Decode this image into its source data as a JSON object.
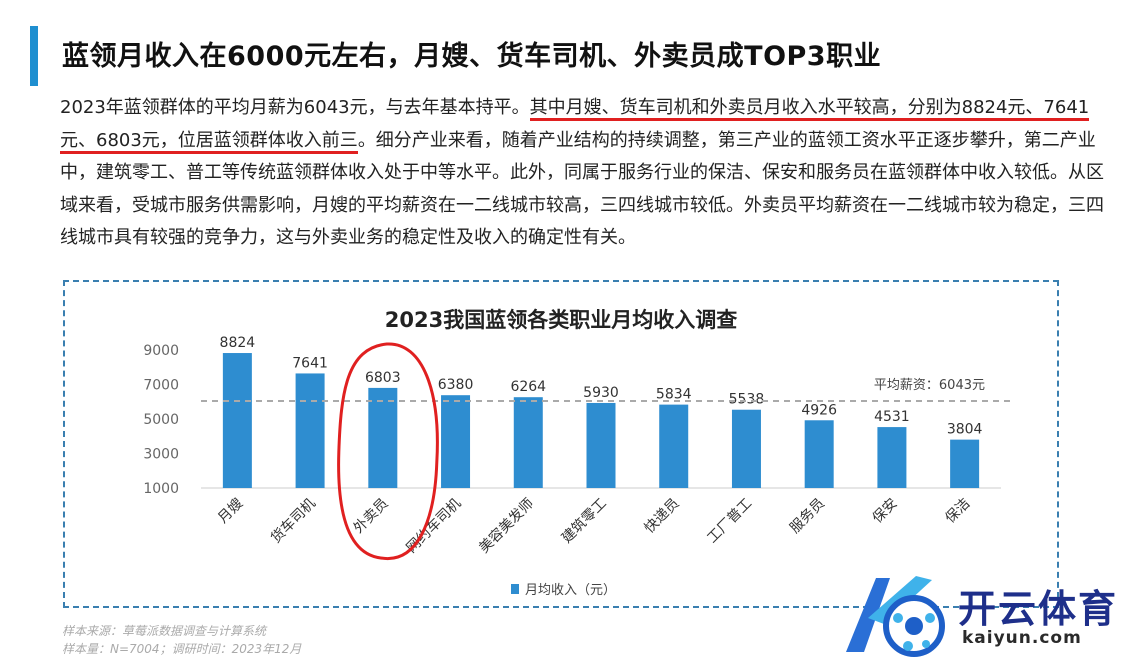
{
  "header": {
    "title": "蓝领月收入在6000元左右，月嫂、货车司机、外卖员成TOP3职业"
  },
  "paragraph": {
    "p1": "2023年蓝领群体的平均月薪为6043元，与去年基本持平。",
    "p2": "其中月嫂、货车司机和外卖员月收入水平较高，分别为8824元、7641元、6803元，位居蓝领群体收入前三",
    "p3": "。细分产业来看，随着产业结构的持续调整，第三产业的蓝领工资水平正逐步攀升，第二产业中，建筑零工、普工等传统蓝领群体收入处于中等水平。此外，同属于服务行业的保洁、保安和服务员在蓝领群体中收入较低。从区域来看，受城市服务供需影响，月嫂的平均薪资在一二线城市较高，三四线城市较低。外卖员平均薪资在一二线城市较为稳定，三四线城市具有较强的竞争力，这与外卖业务的稳定性及收入的确定性有关。"
  },
  "chart_data": {
    "type": "bar",
    "title": "2023我国蓝领各类职业月均收入调查",
    "categories": [
      "月嫂",
      "货车司机",
      "外卖员",
      "网约车司机",
      "美容美发师",
      "建筑零工",
      "快递员",
      "工厂普工",
      "服务员",
      "保安",
      "保洁"
    ],
    "series": [
      {
        "name": "月均收入（元）",
        "values": [
          8824,
          7641,
          6803,
          6380,
          6264,
          5930,
          5834,
          5538,
          4926,
          4531,
          3804
        ]
      }
    ],
    "average": {
      "value": 6043,
      "label": "平均薪资：6043元"
    },
    "ylim": [
      1000,
      9000
    ],
    "yticks": [
      "9000",
      "7000",
      "5000",
      "3000",
      "1000"
    ],
    "legend_position": "bottom",
    "bar_color": "#2e8dd0",
    "highlight_color": "#e02020",
    "highlighted_category": "外卖员"
  },
  "footer": {
    "source": "样本来源：草莓派数据调查与计算系统",
    "sample": "样本量：N=7004；调研时间：2023年12月"
  },
  "logo": {
    "cn": "开云体育",
    "en": "kaiyun.com"
  }
}
